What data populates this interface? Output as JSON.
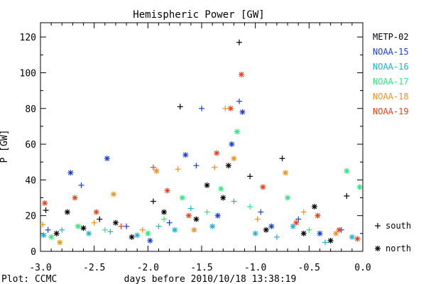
{
  "chart_data": {
    "type": "scatter",
    "title": "Hemispheric Power [GW]",
    "xlabel": "days before 2010/10/18 13:38:19",
    "ylabel": "P [GW]",
    "footer": "Plot: CCMC",
    "xlim": [
      -3.0,
      0.0
    ],
    "ylim": [
      0,
      128
    ],
    "x_ticks": [
      -3.0,
      -2.5,
      -2.0,
      -1.5,
      -1.0,
      -0.5,
      0.0
    ],
    "x_tick_labels": [
      "-3.0",
      "-2.5",
      "-2.0",
      "-1.5",
      "-1.0",
      "-0.5",
      "0.0"
    ],
    "y_ticks": [
      0,
      20,
      40,
      60,
      80,
      100,
      120
    ],
    "y_tick_labels": [
      "0",
      "20",
      "40",
      "60",
      "80",
      "100",
      "120"
    ],
    "legend_placement": "right",
    "markers": [
      {
        "symbol": "+",
        "label": "south"
      },
      {
        "symbol": "*",
        "label": "north"
      }
    ],
    "series": [
      {
        "name": "METP-02",
        "color": "#000000",
        "points": [
          {
            "x": -2.95,
            "y": 23,
            "h": "south"
          },
          {
            "x": -2.85,
            "y": 10,
            "h": "north"
          },
          {
            "x": -2.75,
            "y": 22,
            "h": "north"
          },
          {
            "x": -2.6,
            "y": 13,
            "h": "north"
          },
          {
            "x": -2.45,
            "y": 18,
            "h": "south"
          },
          {
            "x": -2.3,
            "y": 16,
            "h": "north"
          },
          {
            "x": -2.15,
            "y": 8,
            "h": "north"
          },
          {
            "x": -1.95,
            "y": 28,
            "h": "south"
          },
          {
            "x": -1.85,
            "y": 22,
            "h": "north"
          },
          {
            "x": -1.7,
            "y": 81,
            "h": "south"
          },
          {
            "x": -1.55,
            "y": 18,
            "h": "north"
          },
          {
            "x": -1.45,
            "y": 37,
            "h": "north"
          },
          {
            "x": -1.3,
            "y": 30,
            "h": "north"
          },
          {
            "x": -1.25,
            "y": 48,
            "h": "north"
          },
          {
            "x": -1.15,
            "y": 117,
            "h": "south"
          },
          {
            "x": -1.05,
            "y": 42,
            "h": "south"
          },
          {
            "x": -0.9,
            "y": 12,
            "h": "north"
          },
          {
            "x": -0.75,
            "y": 52,
            "h": "south"
          },
          {
            "x": -0.55,
            "y": 10,
            "h": "north"
          },
          {
            "x": -0.45,
            "y": 25,
            "h": "north"
          },
          {
            "x": -0.3,
            "y": 6,
            "h": "north"
          },
          {
            "x": -0.15,
            "y": 31,
            "h": "south"
          }
        ]
      },
      {
        "name": "NOAA-15",
        "color": "#1a3fd6",
        "points": [
          {
            "x": -2.93,
            "y": 12,
            "h": "south"
          },
          {
            "x": -2.72,
            "y": 44,
            "h": "north"
          },
          {
            "x": -2.62,
            "y": 37,
            "h": "south"
          },
          {
            "x": -2.38,
            "y": 52,
            "h": "north"
          },
          {
            "x": -2.2,
            "y": 14,
            "h": "south"
          },
          {
            "x": -1.98,
            "y": 6,
            "h": "north"
          },
          {
            "x": -1.8,
            "y": 16,
            "h": "south"
          },
          {
            "x": -1.65,
            "y": 54,
            "h": "north"
          },
          {
            "x": -1.55,
            "y": 48,
            "h": "south"
          },
          {
            "x": -1.5,
            "y": 80,
            "h": "south"
          },
          {
            "x": -1.35,
            "y": 20,
            "h": "north"
          },
          {
            "x": -1.22,
            "y": 60,
            "h": "north"
          },
          {
            "x": -1.15,
            "y": 84,
            "h": "south"
          },
          {
            "x": -1.12,
            "y": 78,
            "h": "north"
          },
          {
            "x": -0.95,
            "y": 22,
            "h": "south"
          },
          {
            "x": -0.85,
            "y": 14,
            "h": "north"
          },
          {
            "x": -0.6,
            "y": 18,
            "h": "south"
          },
          {
            "x": -0.4,
            "y": 10,
            "h": "north"
          },
          {
            "x": -0.2,
            "y": 12,
            "h": "south"
          }
        ]
      },
      {
        "name": "NOAA-16",
        "color": "#19b4d2",
        "points": [
          {
            "x": -2.97,
            "y": 9,
            "h": "north"
          },
          {
            "x": -2.8,
            "y": 12,
            "h": "south"
          },
          {
            "x": -2.55,
            "y": 10,
            "h": "north"
          },
          {
            "x": -2.35,
            "y": 11,
            "h": "south"
          },
          {
            "x": -2.1,
            "y": 9,
            "h": "north"
          },
          {
            "x": -1.9,
            "y": 14,
            "h": "south"
          },
          {
            "x": -1.75,
            "y": 12,
            "h": "north"
          },
          {
            "x": -1.6,
            "y": 24,
            "h": "south"
          },
          {
            "x": -1.4,
            "y": 14,
            "h": "north"
          },
          {
            "x": -1.2,
            "y": 28,
            "h": "south"
          },
          {
            "x": -1.0,
            "y": 10,
            "h": "north"
          },
          {
            "x": -0.8,
            "y": 8,
            "h": "south"
          },
          {
            "x": -0.65,
            "y": 14,
            "h": "north"
          },
          {
            "x": -0.35,
            "y": 5,
            "h": "south"
          },
          {
            "x": -0.1,
            "y": 8,
            "h": "north"
          }
        ]
      },
      {
        "name": "NOAA-17",
        "color": "#2ee87c",
        "points": [
          {
            "x": -2.9,
            "y": 8,
            "h": "north"
          },
          {
            "x": -2.65,
            "y": 14,
            "h": "north"
          },
          {
            "x": -2.4,
            "y": 12,
            "h": "south"
          },
          {
            "x": -2.0,
            "y": 10,
            "h": "north"
          },
          {
            "x": -1.85,
            "y": 18,
            "h": "south"
          },
          {
            "x": -1.68,
            "y": 30,
            "h": "north"
          },
          {
            "x": -1.45,
            "y": 22,
            "h": "south"
          },
          {
            "x": -1.32,
            "y": 35,
            "h": "north"
          },
          {
            "x": -1.17,
            "y": 67,
            "h": "north"
          },
          {
            "x": -1.05,
            "y": 25,
            "h": "south"
          },
          {
            "x": -0.7,
            "y": 30,
            "h": "north"
          },
          {
            "x": -0.5,
            "y": 12,
            "h": "south"
          },
          {
            "x": -0.15,
            "y": 45,
            "h": "north"
          },
          {
            "x": -0.03,
            "y": 36,
            "h": "north"
          }
        ]
      },
      {
        "name": "NOAA-18",
        "color": "#f0911e",
        "points": [
          {
            "x": -2.98,
            "y": 15,
            "h": "south"
          },
          {
            "x": -2.82,
            "y": 5,
            "h": "north"
          },
          {
            "x": -2.5,
            "y": 16,
            "h": "south"
          },
          {
            "x": -2.32,
            "y": 32,
            "h": "north"
          },
          {
            "x": -2.05,
            "y": 12,
            "h": "south"
          },
          {
            "x": -1.92,
            "y": 45,
            "h": "north"
          },
          {
            "x": -1.72,
            "y": 46,
            "h": "south"
          },
          {
            "x": -1.57,
            "y": 12,
            "h": "north"
          },
          {
            "x": -1.38,
            "y": 47,
            "h": "south"
          },
          {
            "x": -1.28,
            "y": 80,
            "h": "south"
          },
          {
            "x": -1.2,
            "y": 52,
            "h": "north"
          },
          {
            "x": -0.98,
            "y": 18,
            "h": "south"
          },
          {
            "x": -0.72,
            "y": 44,
            "h": "north"
          },
          {
            "x": -0.55,
            "y": 22,
            "h": "south"
          },
          {
            "x": -0.25,
            "y": 10,
            "h": "north"
          }
        ]
      },
      {
        "name": "NOAA-19",
        "color": "#e8401a",
        "points": [
          {
            "x": -2.96,
            "y": 27,
            "h": "north"
          },
          {
            "x": -2.68,
            "y": 30,
            "h": "north"
          },
          {
            "x": -2.48,
            "y": 22,
            "h": "north"
          },
          {
            "x": -2.25,
            "y": 14,
            "h": "south"
          },
          {
            "x": -1.95,
            "y": 47,
            "h": "south"
          },
          {
            "x": -1.82,
            "y": 34,
            "h": "north"
          },
          {
            "x": -1.62,
            "y": 20,
            "h": "north"
          },
          {
            "x": -1.36,
            "y": 55,
            "h": "north"
          },
          {
            "x": -1.23,
            "y": 80,
            "h": "north"
          },
          {
            "x": -1.13,
            "y": 99,
            "h": "north"
          },
          {
            "x": -0.93,
            "y": 36,
            "h": "north"
          },
          {
            "x": -0.62,
            "y": 16,
            "h": "north"
          },
          {
            "x": -0.42,
            "y": 20,
            "h": "north"
          },
          {
            "x": -0.22,
            "y": 12,
            "h": "north"
          },
          {
            "x": -0.05,
            "y": 7,
            "h": "north"
          }
        ]
      }
    ]
  }
}
